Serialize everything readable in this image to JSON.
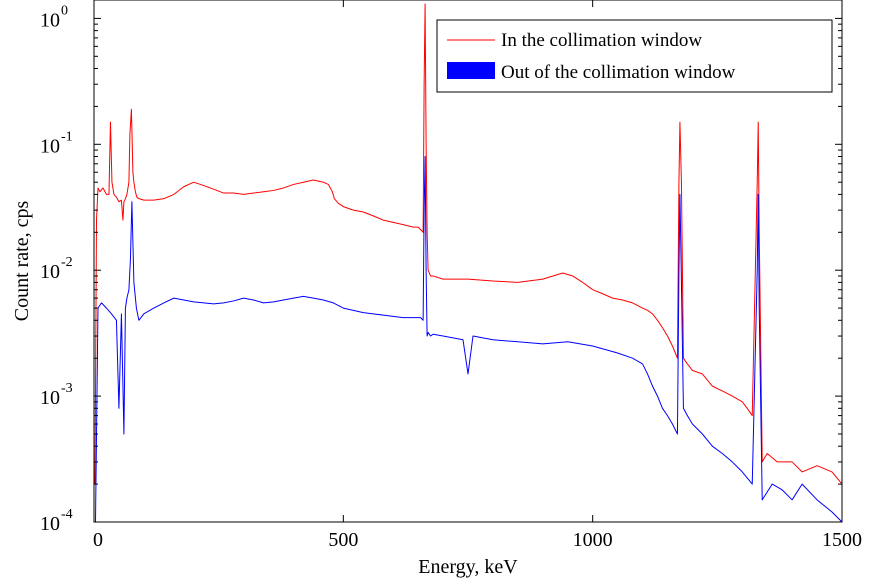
{
  "chart_data": {
    "type": "line",
    "title": "",
    "xlabel": "Energy, keV",
    "ylabel": "Count rate, cps",
    "xlim": [
      0,
      1500
    ],
    "ylim": [
      0.0001,
      2
    ],
    "yscale": "log",
    "x_ticks": [
      0,
      500,
      1000,
      1500
    ],
    "x_tick_labels": [
      "0",
      "500",
      "1000",
      "1500"
    ],
    "y_ticks": [
      0.0001,
      0.001,
      0.01,
      0.1,
      1
    ],
    "y_tick_labels": [
      {
        "base": "10",
        "exp": "-4"
      },
      {
        "base": "10",
        "exp": "-3"
      },
      {
        "base": "10",
        "exp": "-2"
      },
      {
        "base": "10",
        "exp": "-1"
      },
      {
        "base": "10",
        "exp": "0"
      }
    ],
    "grid": false,
    "legend_position": "top-right",
    "series": [
      {
        "name": "In the collimation window",
        "color": "#ff0000",
        "legend_marker": "line",
        "x": [
          2,
          5,
          8,
          12,
          18,
          25,
          30,
          33,
          36,
          40,
          45,
          50,
          55,
          58,
          60,
          63,
          66,
          70,
          72,
          75,
          78,
          80,
          83,
          86,
          90,
          100,
          120,
          140,
          160,
          180,
          200,
          220,
          240,
          260,
          280,
          300,
          320,
          340,
          360,
          380,
          400,
          420,
          440,
          460,
          470,
          478,
          482,
          490,
          500,
          520,
          540,
          560,
          580,
          600,
          620,
          640,
          650,
          655,
          660,
          662,
          664,
          666,
          668,
          670,
          675,
          680,
          700,
          750,
          800,
          850,
          900,
          940,
          960,
          980,
          1000,
          1020,
          1040,
          1060,
          1080,
          1100,
          1110,
          1120,
          1130,
          1140,
          1150,
          1160,
          1170,
          1173,
          1175,
          1178,
          1182,
          1190,
          1200,
          1220,
          1240,
          1260,
          1280,
          1300,
          1310,
          1320,
          1330,
          1332,
          1334,
          1340,
          1350,
          1370,
          1400,
          1420,
          1450,
          1480,
          1500
        ],
        "y": [
          0.0002,
          0.025,
          0.045,
          0.042,
          0.045,
          0.04,
          0.04,
          0.15,
          0.05,
          0.04,
          0.038,
          0.035,
          0.036,
          0.025,
          0.035,
          0.037,
          0.04,
          0.05,
          0.12,
          0.19,
          0.06,
          0.05,
          0.042,
          0.038,
          0.037,
          0.036,
          0.036,
          0.037,
          0.04,
          0.046,
          0.05,
          0.047,
          0.044,
          0.041,
          0.041,
          0.04,
          0.041,
          0.042,
          0.043,
          0.045,
          0.048,
          0.05,
          0.052,
          0.05,
          0.048,
          0.042,
          0.037,
          0.034,
          0.032,
          0.03,
          0.029,
          0.027,
          0.025,
          0.024,
          0.023,
          0.022,
          0.022,
          0.021,
          0.02,
          0.3,
          1.3,
          0.1,
          0.02,
          0.01,
          0.009,
          0.009,
          0.0085,
          0.0085,
          0.0082,
          0.008,
          0.0085,
          0.0095,
          0.009,
          0.008,
          0.007,
          0.0065,
          0.006,
          0.0058,
          0.0055,
          0.005,
          0.0048,
          0.0045,
          0.004,
          0.0035,
          0.003,
          0.0025,
          0.002,
          0.05,
          0.15,
          0.05,
          0.002,
          0.0018,
          0.0016,
          0.0015,
          0.0012,
          0.0011,
          0.001,
          0.0009,
          0.0008,
          0.0007,
          0.05,
          0.15,
          0.02,
          0.0003,
          0.00035,
          0.0003,
          0.0003,
          0.00025,
          0.00028,
          0.00025,
          0.0002
        ]
      },
      {
        "name": "Out of the collimation window",
        "color": "#0000ff",
        "legend_marker": "box",
        "x": [
          3,
          8,
          15,
          25,
          35,
          45,
          50,
          55,
          60,
          63,
          66,
          70,
          73,
          76,
          80,
          85,
          90,
          100,
          120,
          140,
          160,
          180,
          200,
          220,
          240,
          260,
          280,
          300,
          320,
          340,
          360,
          380,
          400,
          420,
          440,
          460,
          480,
          500,
          520,
          540,
          560,
          580,
          600,
          620,
          640,
          655,
          660,
          662,
          664,
          666,
          668,
          670,
          675,
          680,
          700,
          720,
          740,
          750,
          760,
          800,
          850,
          900,
          950,
          1000,
          1050,
          1080,
          1100,
          1110,
          1120,
          1130,
          1140,
          1150,
          1160,
          1170,
          1173,
          1175,
          1178,
          1182,
          1190,
          1200,
          1220,
          1240,
          1260,
          1280,
          1300,
          1320,
          1330,
          1332,
          1334,
          1340,
          1360,
          1380,
          1400,
          1420,
          1450,
          1480,
          1500
        ],
        "y": [
          0.0001,
          0.005,
          0.0055,
          0.005,
          0.0045,
          0.004,
          0.0008,
          0.0045,
          0.0005,
          0.005,
          0.006,
          0.007,
          0.012,
          0.035,
          0.008,
          0.005,
          0.004,
          0.0045,
          0.005,
          0.0055,
          0.006,
          0.0058,
          0.0056,
          0.0055,
          0.0054,
          0.0055,
          0.0057,
          0.006,
          0.0058,
          0.0055,
          0.0056,
          0.0058,
          0.006,
          0.0062,
          0.006,
          0.0058,
          0.0055,
          0.005,
          0.0048,
          0.0046,
          0.0045,
          0.0044,
          0.0043,
          0.0042,
          0.0042,
          0.0042,
          0.004,
          0.03,
          0.08,
          0.01,
          0.003,
          0.0032,
          0.003,
          0.0031,
          0.003,
          0.0029,
          0.0028,
          0.0015,
          0.003,
          0.0028,
          0.0027,
          0.0026,
          0.0027,
          0.0025,
          0.0022,
          0.002,
          0.0018,
          0.0015,
          0.0012,
          0.001,
          0.0008,
          0.0007,
          0.0006,
          0.0005,
          0.01,
          0.04,
          0.008,
          0.0008,
          0.0007,
          0.0006,
          0.0005,
          0.0004,
          0.00035,
          0.0003,
          0.00025,
          0.0002,
          0.01,
          0.04,
          0.005,
          0.00015,
          0.0002,
          0.00018,
          0.00015,
          0.0002,
          0.00015,
          0.00012,
          0.0001
        ]
      }
    ]
  }
}
